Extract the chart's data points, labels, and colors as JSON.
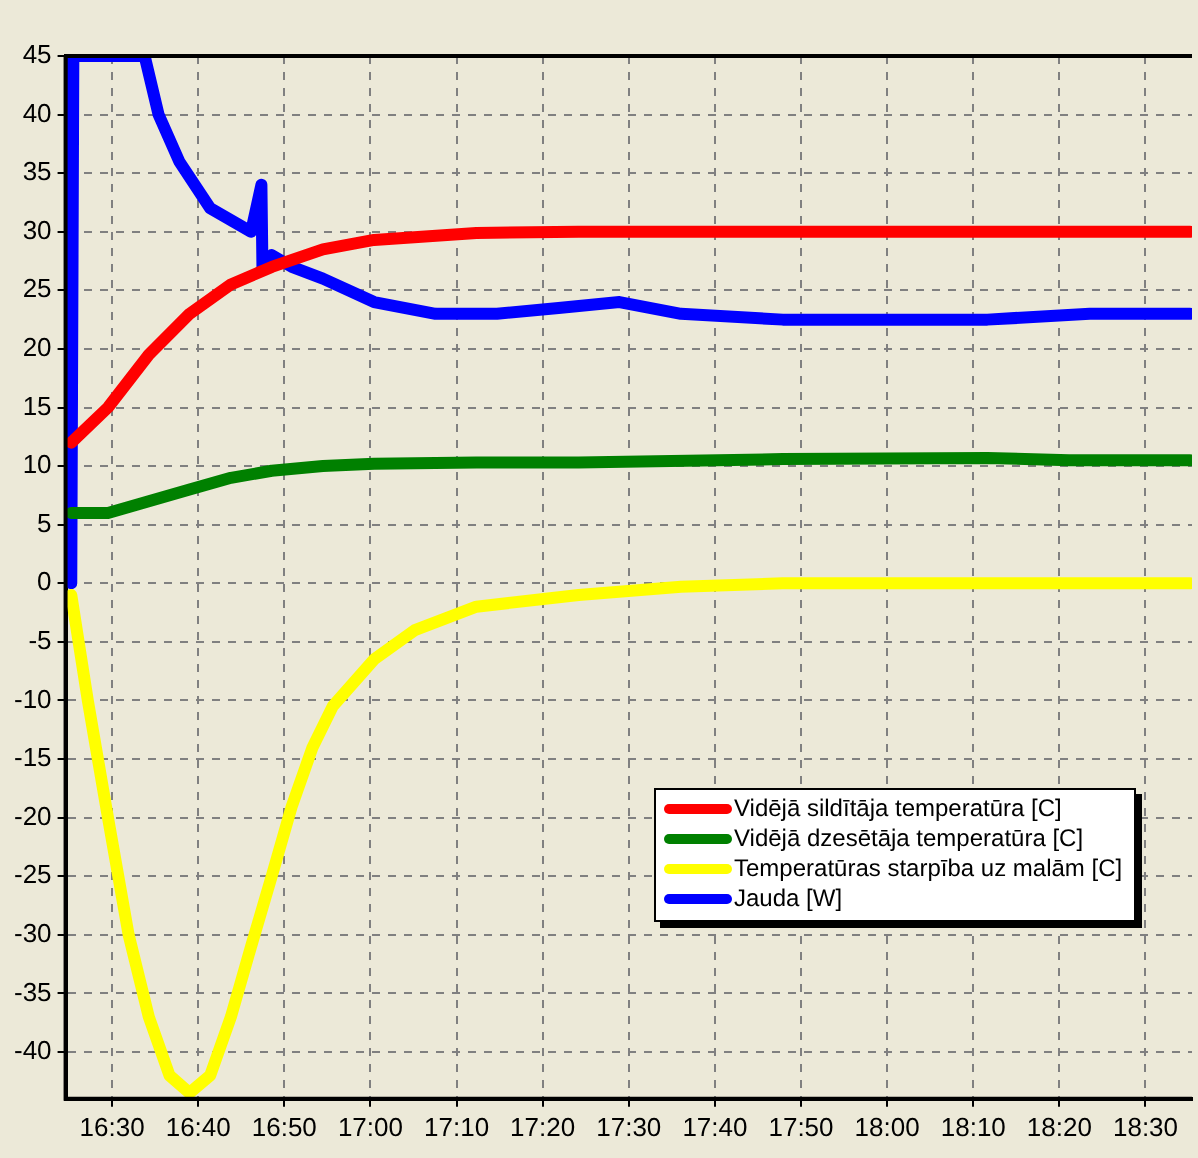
{
  "chart_data": {
    "type": "line",
    "xlim": [
      16.41,
      18.59
    ],
    "ylim": [
      -44,
      45
    ],
    "xticks": [
      {
        "value": 16.5,
        "label": "16:30"
      },
      {
        "value": 16.6667,
        "label": "16:40"
      },
      {
        "value": 16.8333,
        "label": "16:50"
      },
      {
        "value": 17,
        "label": "17:00"
      },
      {
        "value": 17.1667,
        "label": "17:10"
      },
      {
        "value": 17.3333,
        "label": "17:20"
      },
      {
        "value": 17.5,
        "label": "17:30"
      },
      {
        "value": 17.6667,
        "label": "17:40"
      },
      {
        "value": 17.8333,
        "label": "17:50"
      },
      {
        "value": 18,
        "label": "18:00"
      },
      {
        "value": 18.1667,
        "label": "18:10"
      },
      {
        "value": 18.3333,
        "label": "18:20"
      },
      {
        "value": 18.5,
        "label": "18:30"
      }
    ],
    "yticks": [
      -40,
      -35,
      -30,
      -25,
      -20,
      -15,
      -10,
      -5,
      0,
      5,
      10,
      15,
      20,
      25,
      30,
      35,
      40,
      45
    ],
    "grid": true,
    "legend": "bottom right",
    "marker": "none",
    "line_style": "solid",
    "series": [
      {
        "name": "Vidējā sildītāja temperatūra [C]",
        "color": "#ff0000",
        "x": [
          16.421,
          16.492,
          16.571,
          16.65,
          16.73,
          16.809,
          16.908,
          17.007,
          17.205,
          17.403,
          17.798,
          18.194,
          18.586
        ],
        "values": [
          12,
          15,
          19.5,
          23,
          25.5,
          27,
          28.5,
          29.3,
          29.9,
          30,
          30,
          30,
          30
        ]
      },
      {
        "name": "Vidējā dzesētāja temperatūra [C]",
        "color": "#008000",
        "x": [
          16.421,
          16.492,
          16.571,
          16.65,
          16.73,
          16.809,
          16.908,
          17.007,
          17.205,
          17.403,
          17.798,
          18.194,
          18.352,
          18.586
        ],
        "values": [
          6,
          6,
          7,
          8,
          9,
          9.6,
          10,
          10.2,
          10.3,
          10.3,
          10.6,
          10.7,
          10.5,
          10.5
        ]
      },
      {
        "name": "Temperatūras starpība uz malām [C]",
        "color": "#ffff00",
        "x": [
          16.421,
          16.453,
          16.492,
          16.532,
          16.571,
          16.611,
          16.65,
          16.69,
          16.73,
          16.769,
          16.809,
          16.848,
          16.888,
          16.927,
          17.007,
          17.086,
          17.205,
          17.403,
          17.601,
          17.798,
          18.194,
          18.586
        ],
        "values": [
          -1,
          -10,
          -20,
          -30,
          -37,
          -42,
          -43.5,
          -42,
          -37,
          -31,
          -25,
          -19,
          -14,
          -10.5,
          -6.5,
          -4,
          -2,
          -1,
          -0.3,
          0,
          0,
          0
        ]
      },
      {
        "name": "Jauda [W]",
        "color": "#0000ff",
        "x": [
          16.421,
          16.425,
          16.532,
          16.563,
          16.59,
          16.63,
          16.69,
          16.769,
          16.789,
          16.791,
          16.809,
          16.848,
          16.908,
          17.007,
          17.126,
          17.245,
          17.364,
          17.482,
          17.601,
          17.798,
          17.996,
          18.194,
          18.392,
          18.586
        ],
        "values": [
          0,
          45,
          45,
          45,
          40,
          36,
          32,
          30,
          34,
          27,
          28,
          27,
          26,
          24,
          23,
          23,
          23.5,
          24,
          23,
          22.5,
          22.5,
          22.5,
          23,
          23
        ]
      }
    ]
  }
}
